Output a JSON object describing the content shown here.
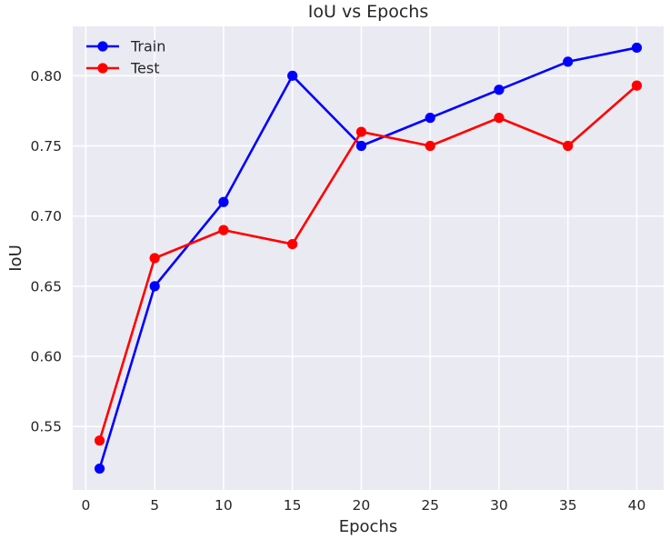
{
  "chart_data": {
    "type": "line",
    "title": "IoU vs Epochs",
    "xlabel": "Epochs",
    "ylabel": "IoU",
    "x": [
      1,
      5,
      10,
      15,
      20,
      25,
      30,
      35,
      40
    ],
    "series": [
      {
        "name": "Train",
        "color": "#0000ff",
        "values": [
          0.52,
          0.65,
          0.71,
          0.8,
          0.75,
          0.77,
          0.79,
          0.81,
          0.82
        ]
      },
      {
        "name": "Test",
        "color": "#ff0000",
        "values": [
          0.54,
          0.67,
          0.69,
          0.68,
          0.76,
          0.75,
          0.77,
          0.75,
          0.793
        ]
      }
    ],
    "xticks": [
      "0",
      "5",
      "10",
      "15",
      "20",
      "25",
      "30",
      "35",
      "40"
    ],
    "yticks": [
      "0.55",
      "0.60",
      "0.65",
      "0.70",
      "0.75",
      "0.80"
    ],
    "xlim": [
      -0.95,
      41.95
    ],
    "ylim": [
      0.5048,
      0.8352
    ],
    "grid": true,
    "legend_position": "upper-left",
    "background_color": "#eaeaf2",
    "grid_color": "#ffffff"
  }
}
